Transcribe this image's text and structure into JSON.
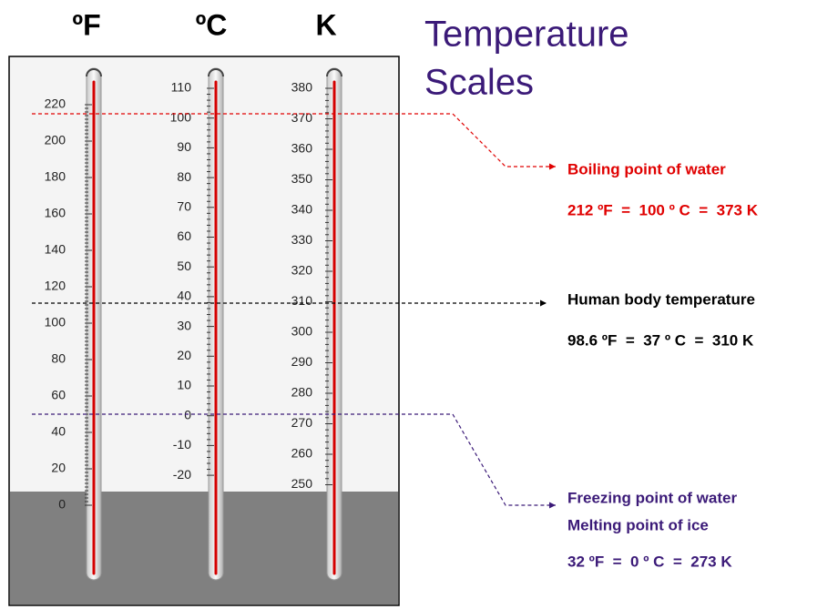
{
  "headers": [
    "ºF",
    "ºC",
    "K"
  ],
  "title": [
    "Temperature",
    "Scales"
  ],
  "thermometers": [
    {
      "labels": [
        220,
        200,
        180,
        160,
        140,
        120,
        100,
        80,
        60,
        40,
        20,
        0
      ]
    },
    {
      "labels": [
        110,
        100,
        90,
        80,
        70,
        60,
        50,
        40,
        30,
        20,
        10,
        0,
        -10,
        -20
      ]
    },
    {
      "labels": [
        380,
        370,
        360,
        350,
        340,
        330,
        320,
        310,
        300,
        290,
        280,
        270,
        260,
        250
      ]
    }
  ],
  "annotations": [
    {
      "lines": [
        "Boiling point of water",
        "212 ºF  =  100 º C  =  373 K"
      ]
    },
    {
      "lines": [
        "Human body temperature",
        "98.6 ºF  =  37 º C  =  310 K"
      ]
    },
    {
      "lines": [
        "Freezing point of water",
        "Melting point of ice",
        "32 ºF  =  0 º C  =  273 K"
      ]
    }
  ]
}
